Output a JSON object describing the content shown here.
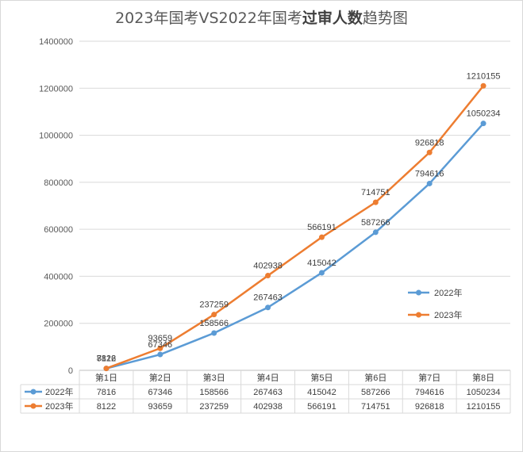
{
  "chart_data": {
    "type": "line",
    "title_part1": "2023年国考VS2022年国考",
    "title_part2": "过审人数",
    "title_part3": "趋势图",
    "categories": [
      "第1日",
      "第2日",
      "第3日",
      "第4日",
      "第5日",
      "第6日",
      "第7日",
      "第8日"
    ],
    "ylim": [
      0,
      1400000
    ],
    "yticks": [
      "0",
      "200000",
      "400000",
      "600000",
      "800000",
      "1000000",
      "1200000",
      "1400000"
    ],
    "grid": true,
    "legend_position": "right",
    "series": [
      {
        "name": "2022年",
        "color": "#5b9bd5",
        "values": [
          7816,
          67346,
          158566,
          267463,
          415042,
          587266,
          794616,
          1050234
        ]
      },
      {
        "name": "2023年",
        "color": "#ed7d31",
        "values": [
          8122,
          93659,
          237259,
          402938,
          566191,
          714751,
          926818,
          1210155
        ]
      }
    ]
  }
}
